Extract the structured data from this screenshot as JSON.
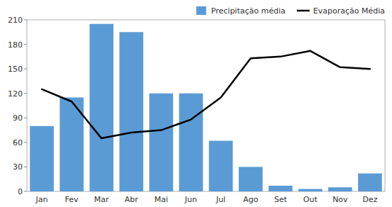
{
  "chart_data": {
    "type": "bar",
    "categories": [
      "Jan",
      "Fev",
      "Mar",
      "Abr",
      "Mai",
      "Jun",
      "Jul",
      "Ago",
      "Set",
      "Out",
      "Nov",
      "Dez"
    ],
    "series": [
      {
        "name": "Precipitação média",
        "type": "bar",
        "color": "#5B9BD5",
        "values": [
          80,
          115,
          205,
          195,
          120,
          120,
          62,
          30,
          7,
          3,
          5,
          22
        ]
      },
      {
        "name": "Evaporação Média",
        "type": "line",
        "color": "#000000",
        "values": [
          125,
          110,
          65,
          72,
          75,
          88,
          115,
          163,
          165,
          172,
          152,
          150
        ]
      }
    ],
    "ylim": [
      0,
      210
    ],
    "yticks": [
      0,
      30,
      60,
      90,
      120,
      150,
      180,
      210
    ],
    "grid": false,
    "legend": "upper right"
  }
}
